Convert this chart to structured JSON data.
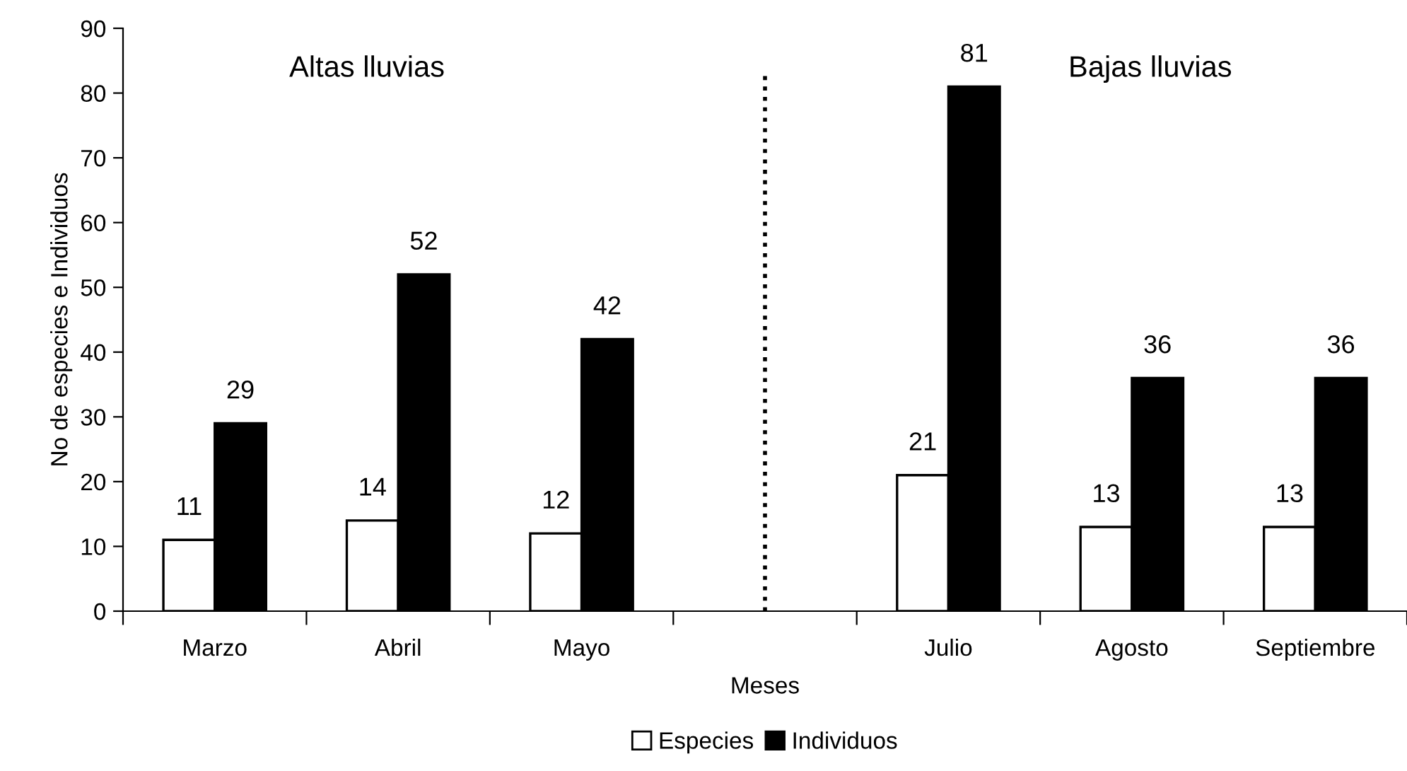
{
  "chart_data": {
    "type": "bar",
    "xlabel": "Meses",
    "ylabel": "No de especies e Individuos",
    "categories": [
      "Marzo",
      "Abril",
      "Mayo",
      null,
      "Julio",
      "Agosto",
      "Septiembre"
    ],
    "series": [
      {
        "name": "Especies",
        "color": "#ffffff",
        "values": [
          11,
          14,
          12,
          null,
          21,
          13,
          13
        ]
      },
      {
        "name": "Individuos",
        "color": "#000000",
        "values": [
          29,
          52,
          42,
          null,
          81,
          36,
          36
        ]
      }
    ],
    "ylim": [
      0,
      90
    ],
    "yticks": [
      0,
      10,
      20,
      30,
      40,
      50,
      60,
      70,
      80,
      90
    ],
    "data_labels": true,
    "legend": "bottom",
    "annotations": [
      "Altas lluvias",
      "Bajas lluvias"
    ]
  }
}
